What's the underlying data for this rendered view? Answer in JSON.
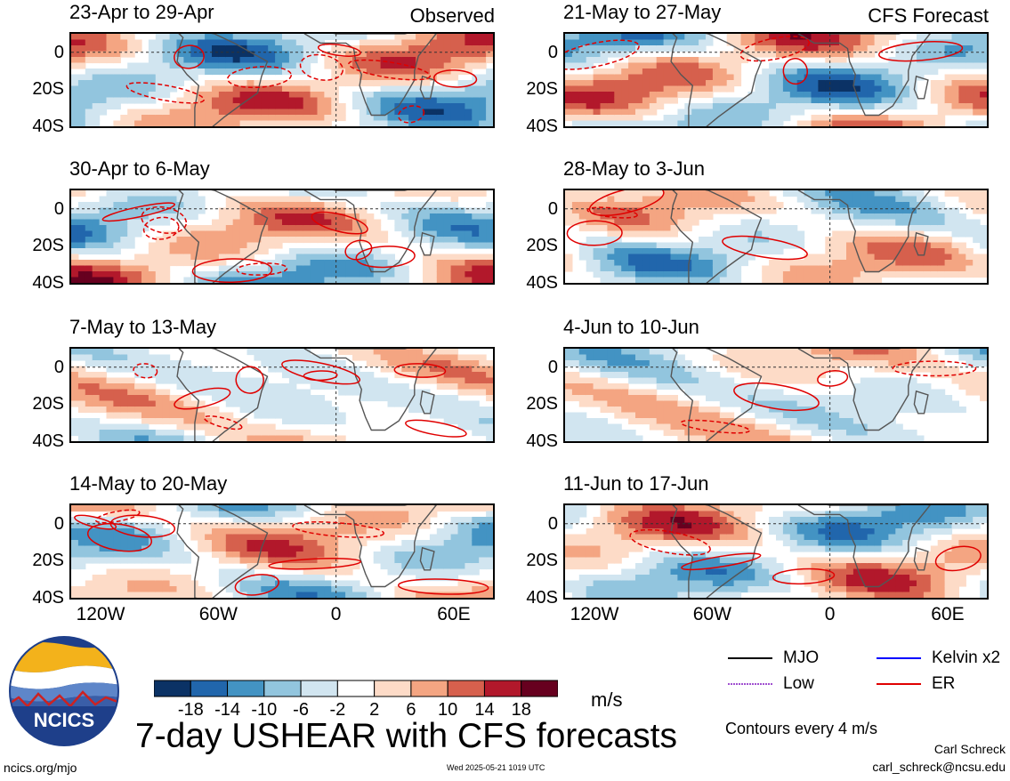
{
  "title": "7-day USHEAR with CFS forecasts",
  "units": "m/s",
  "contour_note": "Contours every 4 m/s",
  "author": "Carl Schreck",
  "email": "carl_schreck@ncsu.edu",
  "url": "ncics.org/mjo",
  "timestamp": "Wed 2025-05-21 1019 UTC",
  "logo_text": "NCICS",
  "labels": {
    "observed": "Observed",
    "forecast": "CFS Forecast"
  },
  "colors": {
    "ramp": [
      "#0b3265",
      "#2166ac",
      "#4393c3",
      "#92c5de",
      "#d1e5f0",
      "#ffffff",
      "#fddbc7",
      "#f4a582",
      "#d6604d",
      "#b2182b",
      "#67001f"
    ],
    "mjo": "#000000",
    "kelvin": "#0000ff",
    "low": "#a050d0",
    "er": "#e00000"
  },
  "colorbar": {
    "levels": [
      "-18",
      "-14",
      "-10",
      "-6",
      "-2",
      "2",
      "6",
      "10",
      "14",
      "18"
    ]
  },
  "legend": [
    {
      "name": "MJO",
      "color": "#000000",
      "style": "solid"
    },
    {
      "name": "Kelvin x2",
      "color": "#0000ff",
      "style": "solid"
    },
    {
      "name": "Low",
      "color": "#a050d0",
      "style": "hatched"
    },
    {
      "name": "ER",
      "color": "#e00000",
      "style": "solid"
    }
  ],
  "panels": [
    {
      "label": "23-Apr to 29-Apr",
      "kind": "observed"
    },
    {
      "label": "30-Apr to 6-May",
      "kind": "observed"
    },
    {
      "label": "7-May to 13-May",
      "kind": "observed"
    },
    {
      "label": "14-May to 20-May",
      "kind": "observed"
    },
    {
      "label": "21-May to 27-May",
      "kind": "forecast"
    },
    {
      "label": "28-May to 3-Jun",
      "kind": "forecast"
    },
    {
      "label": "4-Jun to 10-Jun",
      "kind": "forecast"
    },
    {
      "label": "11-Jun to 17-Jun",
      "kind": "forecast"
    }
  ],
  "chart_data": {
    "type": "heatmap",
    "title": "7-day USHEAR with CFS forecasts",
    "colorbar_unit": "m/s",
    "colorbar_levels": [
      -18,
      -14,
      -10,
      -6,
      -2,
      2,
      6,
      10,
      14,
      18
    ],
    "x_ticks": [
      "120W",
      "60W",
      "0",
      "60E"
    ],
    "x_tick_values": [
      -120,
      -60,
      0,
      60
    ],
    "y_ticks": [
      "0",
      "20S",
      "40S"
    ],
    "y_tick_values": [
      0,
      -20,
      -40
    ],
    "xlim": [
      -135,
      80
    ],
    "ylim": [
      -40,
      10
    ]
  }
}
